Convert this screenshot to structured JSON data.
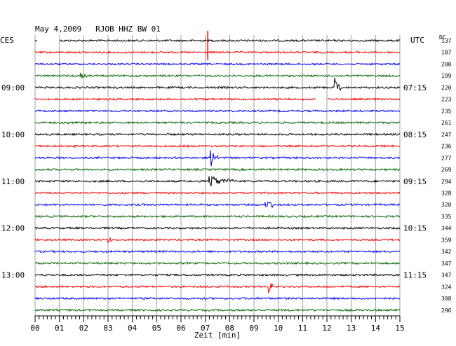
{
  "chart_data": {
    "type": "line",
    "title": "May 4,2009   RJOB HHZ BW 01",
    "left_zone_label": "CES",
    "right_zone_label": "UTC",
    "dc_label": "DC",
    "xlabel": "Zeit [min]",
    "x_ticks": [
      "00",
      "01",
      "02",
      "03",
      "04",
      "05",
      "06",
      "07",
      "08",
      "09",
      "10",
      "11",
      "12",
      "13",
      "14",
      "15"
    ],
    "xlim": [
      0,
      15
    ],
    "grid": true,
    "trace_colors": [
      "#000000",
      "#ff0000",
      "#0000ff",
      "#006600"
    ],
    "left_time_labels": [
      {
        "row": 4,
        "text": "09:00"
      },
      {
        "row": 8,
        "text": "10:00"
      },
      {
        "row": 12,
        "text": "11:00"
      },
      {
        "row": 16,
        "text": "12:00"
      },
      {
        "row": 20,
        "text": "13:00"
      }
    ],
    "right_time_labels": [
      {
        "row": 4,
        "text": "07:15"
      },
      {
        "row": 8,
        "text": "08:15"
      },
      {
        "row": 12,
        "text": "09:15"
      },
      {
        "row": 16,
        "text": "10:15"
      },
      {
        "row": 20,
        "text": "11:15"
      }
    ],
    "dc_values": [
      "137",
      "187",
      "200",
      "199",
      "220",
      "223",
      "235",
      "261",
      "247",
      "236",
      "277",
      "269",
      "294",
      "328",
      "320",
      "335",
      "344",
      "359",
      "342",
      "347",
      "347",
      "324",
      "308",
      "296"
    ],
    "gaps": [
      {
        "row": 0,
        "start": 0.1,
        "end": 1.0
      },
      {
        "row": 5,
        "start": 11.55,
        "end": 12.0
      }
    ],
    "events": [
      {
        "row": 0,
        "minute": 7.1,
        "amplitude": 14,
        "duration": 0.15,
        "color": "#ff0000"
      },
      {
        "row": 3,
        "minute": 1.9,
        "amplitude": 6,
        "duration": 0.3
      },
      {
        "row": 4,
        "minute": 12.35,
        "amplitude": 16,
        "duration": 0.25
      },
      {
        "row": 7,
        "minute": 1.4,
        "amplitude": 3,
        "duration": 0.3
      },
      {
        "row": 10,
        "minute": 7.25,
        "amplitude": 12,
        "duration": 0.3
      },
      {
        "row": 12,
        "minute": 7.2,
        "amplitude": 9,
        "duration": 1.2
      },
      {
        "row": 14,
        "minute": 9.5,
        "amplitude": 11,
        "duration": 0.45
      },
      {
        "row": 17,
        "minute": 3.05,
        "amplitude": 8,
        "duration": 0.1
      },
      {
        "row": 21,
        "minute": 9.65,
        "amplitude": 11,
        "duration": 0.15
      }
    ]
  }
}
